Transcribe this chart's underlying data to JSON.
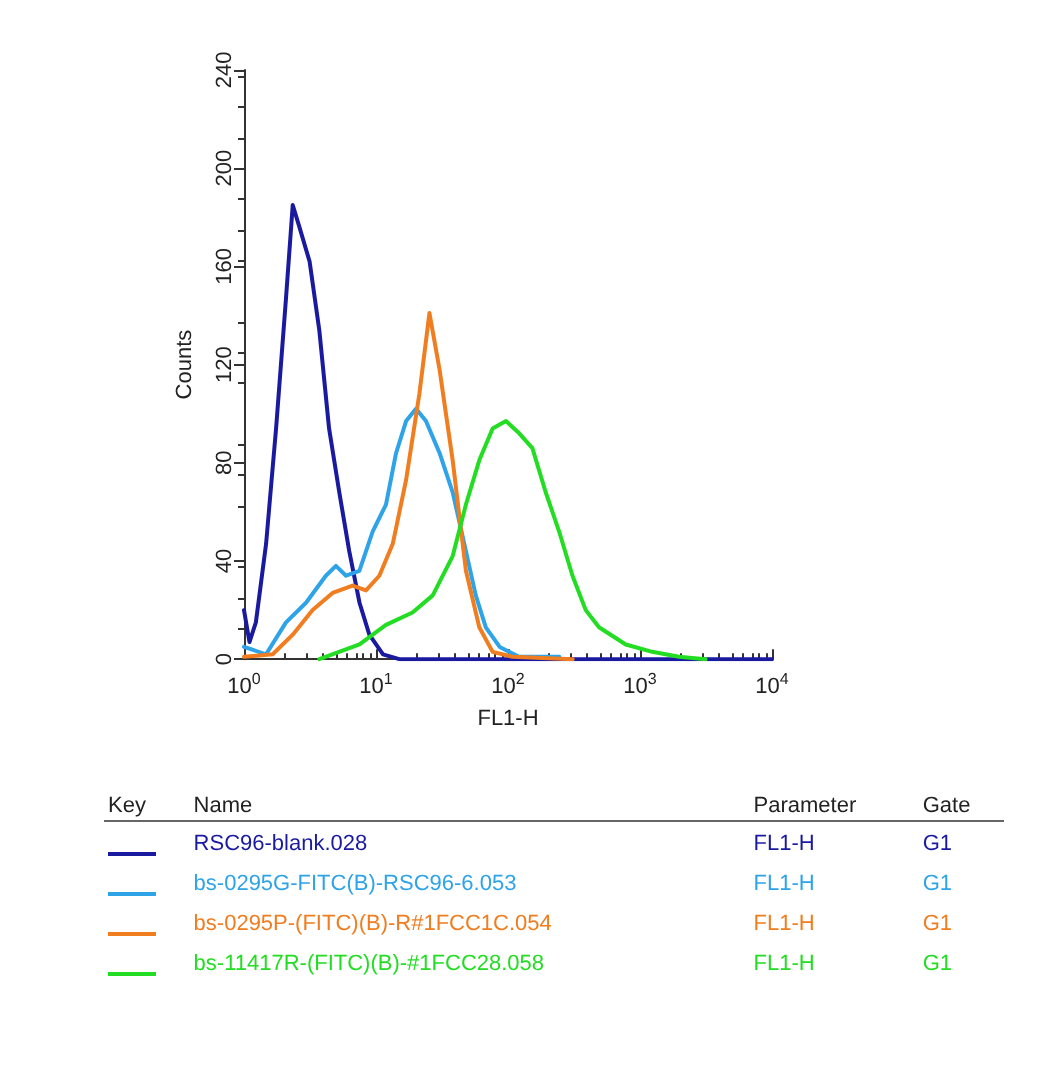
{
  "chart_data": {
    "type": "line",
    "xlabel": "FL1-H",
    "ylabel": "Counts",
    "log": "x",
    "xlim": [
      1,
      10000
    ],
    "xticks": [
      {
        "value": 1,
        "label": "10$^{0}$"
      },
      {
        "value": 10,
        "label": "10$^{1}$"
      },
      {
        "value": 100,
        "label": "10$^{2}$"
      },
      {
        "value": 1000,
        "label": "10$^{3}$"
      },
      {
        "value": 10000,
        "label": "10$^{4}$"
      }
    ],
    "ylim": [
      0,
      240
    ],
    "yticks": [
      0,
      40,
      80,
      120,
      160,
      200,
      240
    ],
    "grid": false,
    "legend": "bottom",
    "marker": "none",
    "line_style": "solid",
    "annotations": [
      "Key",
      "Name",
      "Parameter",
      "Gate",
      "FL1-H",
      "G1",
      "FL1-H",
      "G1",
      "FL1-H",
      "G1",
      "FL1-H",
      "G1"
    ],
    "series": [
      {
        "name": "RSC96-blank.028",
        "color": "#1a1aa0",
        "x": [
          1.0,
          1.1,
          1.23,
          1.47,
          1.75,
          2.08,
          2.34,
          2.63,
          3.14,
          3.72,
          4.41,
          5.27,
          6.27,
          7.5,
          8.9,
          11.3,
          15,
          10000
        ],
        "values": [
          20,
          7,
          15,
          47,
          94,
          147,
          185,
          176,
          162,
          134,
          94,
          68,
          44,
          23,
          10,
          2,
          0,
          0
        ]
      },
      {
        "name": "bs-0295G-FITC(B)-RSC96-6.053",
        "color": "#2ea3e8",
        "x": [
          1.0,
          1.47,
          2.08,
          2.95,
          4.17,
          4.97,
          5.93,
          7.48,
          9.43,
          11.9,
          14.2,
          16.9,
          20.1,
          23.9,
          30.3,
          38.1,
          48,
          57,
          67.9,
          86.5,
          121,
          245
        ],
        "values": [
          5,
          2,
          15,
          23,
          34,
          38,
          34,
          36,
          52,
          63,
          84,
          97,
          102,
          97,
          84,
          68,
          44,
          26,
          13,
          5,
          1,
          1
        ]
      },
      {
        "name": "bs-0295P-(FITC)(B)-R#1FCC1C.054",
        "color": "#f07d1f",
        "x": [
          1.0,
          1.65,
          2.34,
          3.31,
          4.69,
          6.65,
          8.4,
          10.6,
          13.4,
          16.9,
          21.3,
          25.4,
          30.3,
          38.1,
          48,
          60.6,
          76.5,
          108,
          309
        ],
        "values": [
          1,
          2,
          10,
          20,
          27,
          30,
          28,
          34,
          47,
          73,
          108,
          141,
          118,
          81,
          36,
          13,
          3,
          1,
          0
        ]
      },
      {
        "name": "bs-11417R-(FITC)(B)-#1FCC28.058",
        "color": "#22dd22",
        "x": [
          3.72,
          7.5,
          11.9,
          18.9,
          26.9,
          38.1,
          48,
          60.6,
          76.5,
          96.5,
          121.6,
          153,
          193,
          244,
          308,
          388,
          489,
          780,
          1238,
          1973,
          3140
        ],
        "values": [
          0,
          6,
          14,
          19,
          26,
          42,
          63,
          81,
          94,
          97,
          92,
          86,
          68,
          52,
          34,
          20,
          13,
          6,
          3,
          1,
          0
        ]
      }
    ]
  }
}
